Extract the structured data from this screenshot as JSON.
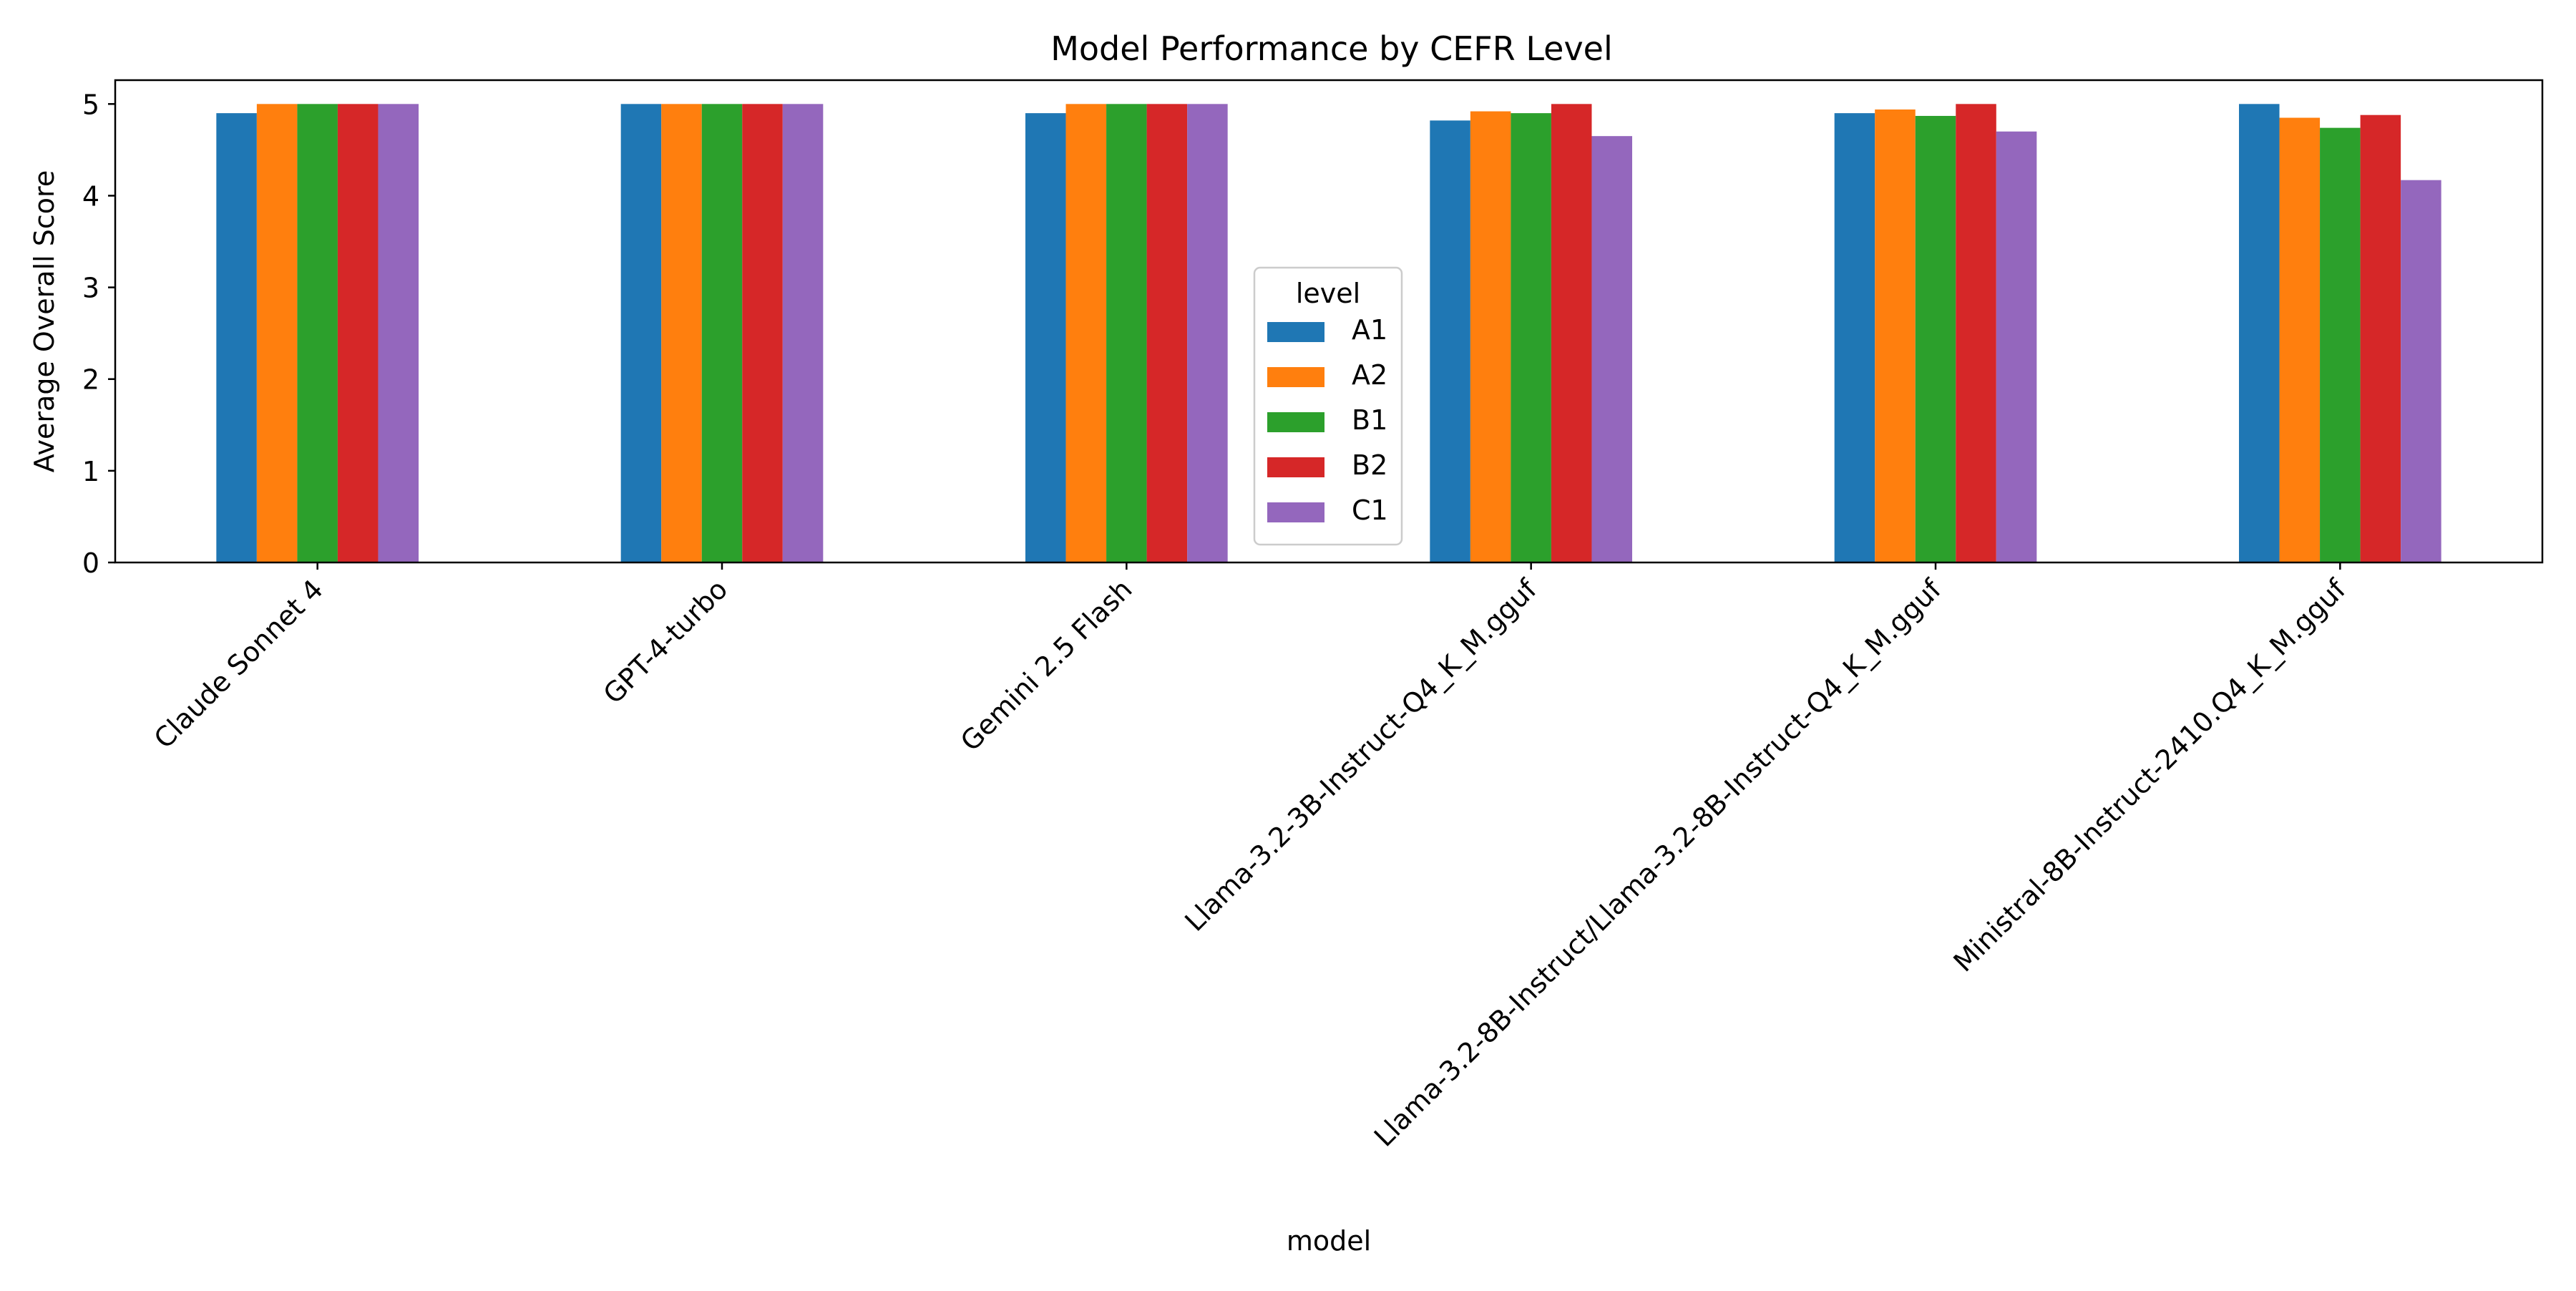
{
  "chart_data": {
    "type": "bar",
    "title": "Model Performance by CEFR Level",
    "xlabel": "model",
    "ylabel": "Average Overall Score",
    "ylim": [
      0,
      5.26
    ],
    "yticks": [
      0,
      1,
      2,
      3,
      4,
      5
    ],
    "grid": false,
    "legend": {
      "title": "level",
      "placement": "center"
    },
    "categories": [
      "Claude Sonnet 4",
      "GPT-4-turbo",
      "Gemini 2.5 Flash",
      "Llama-3.2-3B-Instruct-Q4_K_M.gguf",
      "Llama-3.2-8B-Instruct/Llama-3.2-8B-Instruct-Q4_K_M.gguf",
      "Ministral-8B-Instruct-2410.Q4_K_M.gguf"
    ],
    "series": [
      {
        "name": "A1",
        "color": "#1f77b4",
        "values": [
          4.9,
          5.0,
          4.9,
          4.82,
          4.9,
          5.0
        ]
      },
      {
        "name": "A2",
        "color": "#ff7f0e",
        "values": [
          5.0,
          5.0,
          5.0,
          4.92,
          4.94,
          4.85
        ]
      },
      {
        "name": "B1",
        "color": "#2ca02c",
        "values": [
          5.0,
          5.0,
          5.0,
          4.9,
          4.87,
          4.74
        ]
      },
      {
        "name": "B2",
        "color": "#d62728",
        "values": [
          5.0,
          5.0,
          5.0,
          5.0,
          5.0,
          4.88
        ]
      },
      {
        "name": "C1",
        "color": "#9467bd",
        "values": [
          5.0,
          5.0,
          5.0,
          4.65,
          4.7,
          4.17
        ]
      }
    ]
  }
}
